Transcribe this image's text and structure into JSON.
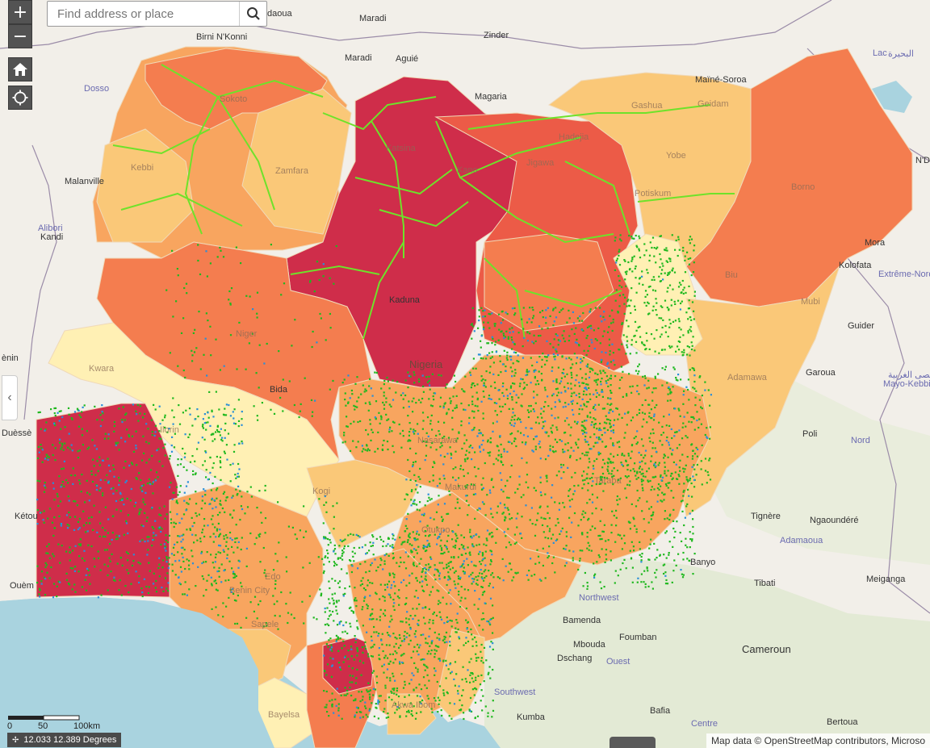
{
  "search": {
    "placeholder": "Find address or place"
  },
  "zoom": {
    "in_label": "+",
    "out_label": "−"
  },
  "scalebar": {
    "labels": [
      "0",
      "50",
      "100km"
    ]
  },
  "coords_readout": "12.033 12.389 Degrees",
  "attribution": "Map data © OpenStreetMap contributors, Microso",
  "colors": {
    "water": "#a9d3df",
    "land": "#f2efe9",
    "very_high": "#cf2d4a",
    "high": "#ec5b47",
    "mid_high": "#f47d4f",
    "mid": "#f8a55f",
    "low": "#fac878",
    "very_low": "#fff0b4",
    "roads": "#6ee22a",
    "points_green": "#1fb81f",
    "points_blue": "#2a8fd8"
  },
  "places": [
    {
      "name": "Birni N'Konni"
    },
    {
      "name": "Maradi"
    },
    {
      "name": "Maradi"
    },
    {
      "name": "Aguié"
    },
    {
      "name": "Zinder"
    },
    {
      "name": "Magaria"
    },
    {
      "name": "Maïné-Soroa"
    },
    {
      "name": "Lac"
    },
    {
      "name": "البحيرة"
    },
    {
      "name": "Dosso"
    },
    {
      "name": "Malanville"
    },
    {
      "name": "Alibori"
    },
    {
      "name": "Kandi"
    },
    {
      "name": "N'D"
    },
    {
      "name": "Mora"
    },
    {
      "name": "Kolofata"
    },
    {
      "name": "Extrême-Nord"
    },
    {
      "name": "Guider"
    },
    {
      "name": "Garoua"
    },
    {
      "name": "أقصى الغربية"
    },
    {
      "name": "Mayo-Kebbi"
    },
    {
      "name": "Poli"
    },
    {
      "name": "Nord"
    },
    {
      "name": "Tignère"
    },
    {
      "name": "Ngaoundéré"
    },
    {
      "name": "Adamaoua"
    },
    {
      "name": "Banyo"
    },
    {
      "name": "Tibati"
    },
    {
      "name": "Meiganga"
    },
    {
      "name": "Northwest"
    },
    {
      "name": "Bamenda"
    },
    {
      "name": "Mbouda"
    },
    {
      "name": "Foumban"
    },
    {
      "name": "Dschang"
    },
    {
      "name": "Ouest"
    },
    {
      "name": "Southwest"
    },
    {
      "name": "Cameroun"
    },
    {
      "name": "Kumba"
    },
    {
      "name": "Bafia"
    },
    {
      "name": "Centre"
    },
    {
      "name": "Bertoua"
    },
    {
      "name": "Kétou"
    },
    {
      "name": "Ouèm"
    },
    {
      "name": "Duèssè"
    },
    {
      "name": "ènin"
    },
    {
      "name": "Nigeria"
    },
    {
      "name": "Kaduna"
    },
    {
      "name": "Bida"
    },
    {
      "name": "Ilorin"
    },
    {
      "name": "Kogi"
    },
    {
      "name": "Makurdi"
    },
    {
      "name": "Otukpo"
    },
    {
      "name": "Benin City"
    },
    {
      "name": "Sapele"
    },
    {
      "name": "Bayelsa"
    },
    {
      "name": "Akwa Ibom"
    },
    {
      "name": "Taraba"
    },
    {
      "name": "Adamawa"
    },
    {
      "name": "Mubi"
    },
    {
      "name": "Biu"
    },
    {
      "name": "Borno"
    },
    {
      "name": "Yobe"
    },
    {
      "name": "Gashua"
    },
    {
      "name": "Geidam"
    },
    {
      "name": "Potiskum"
    },
    {
      "name": "Jigawa"
    },
    {
      "name": "Hadejia"
    },
    {
      "name": "Kano"
    },
    {
      "name": "Katsina"
    },
    {
      "name": "Zamfara"
    },
    {
      "name": "Kebbi"
    },
    {
      "name": "Sokoto"
    },
    {
      "name": "Niger"
    },
    {
      "name": "Kwara"
    },
    {
      "name": "Nasarawa"
    },
    {
      "name": "Edo"
    },
    {
      "name": "daoua"
    }
  ]
}
